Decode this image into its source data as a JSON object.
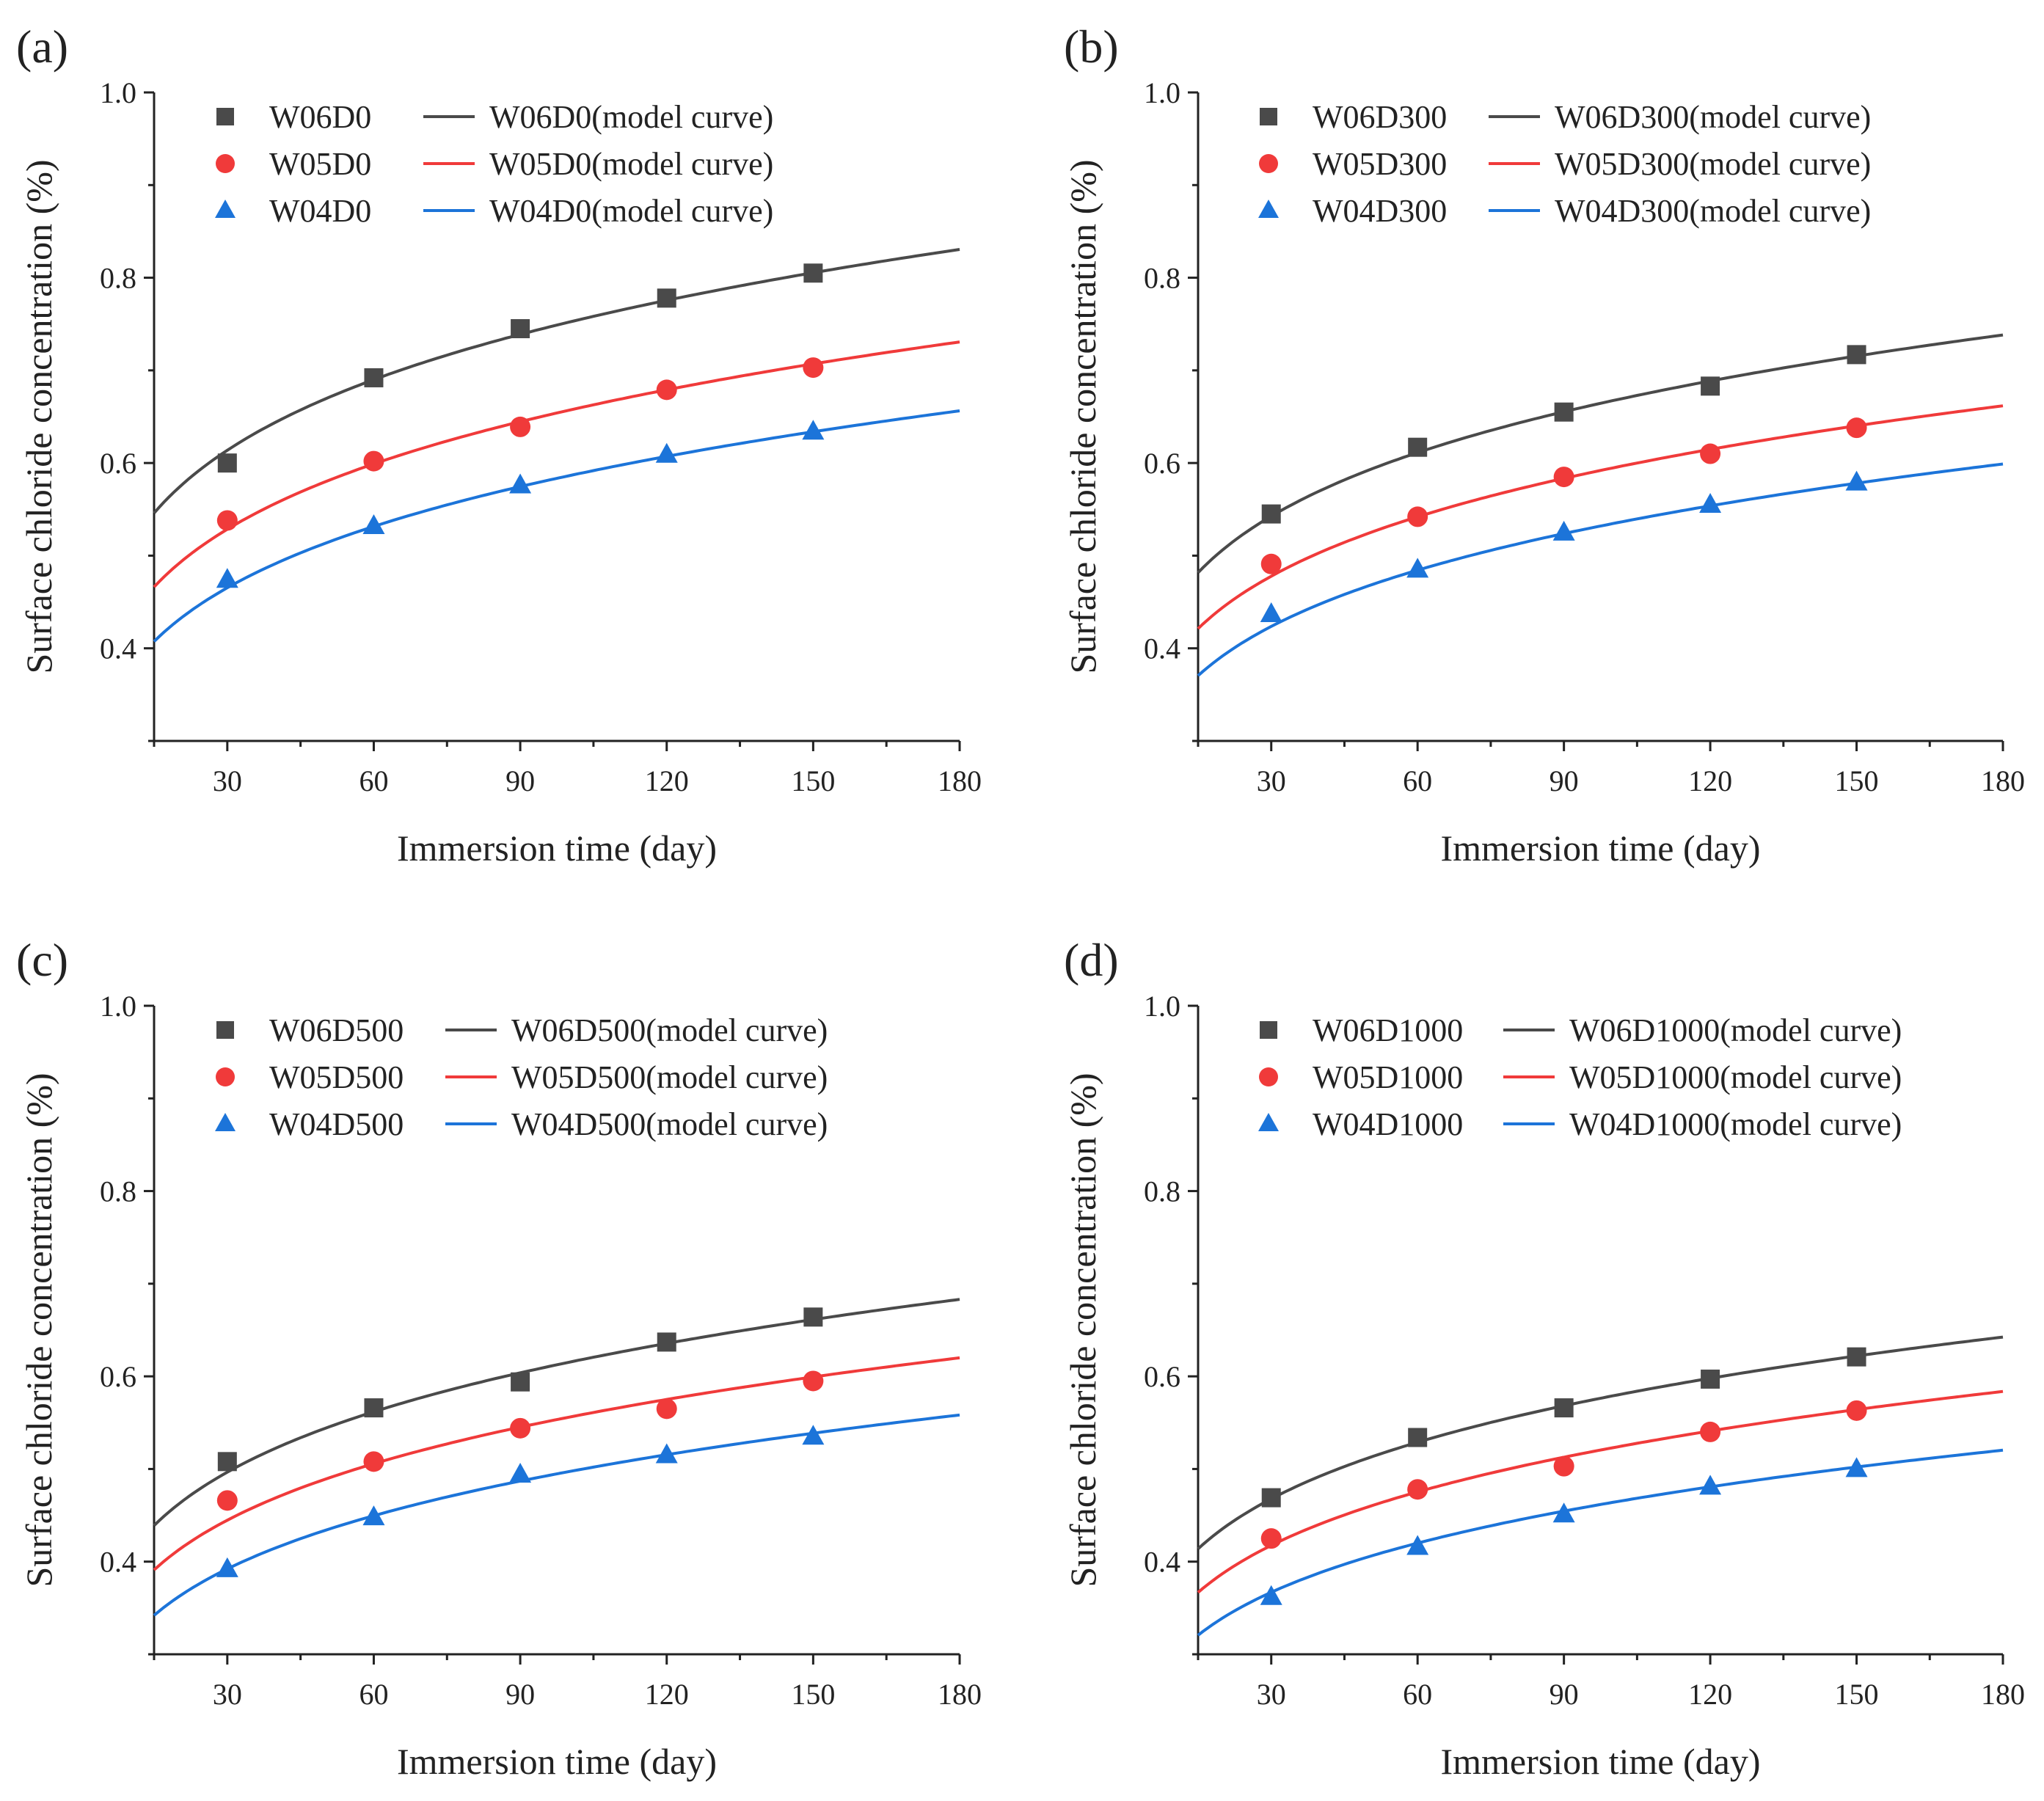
{
  "figure": {
    "colors": {
      "black": "#4a4a4a",
      "red": "#f03a3a",
      "blue": "#1c74d9"
    }
  },
  "chart_data": [
    {
      "type": "scatter",
      "panel_label": "(a)",
      "xlabel": "Immersion time (day)",
      "ylabel": "Surface chloride concentration (%)",
      "xlim": [
        15,
        180
      ],
      "ylim": [
        0.3,
        1.0
      ],
      "xticks": [
        "30",
        "60",
        "90",
        "120",
        "150",
        "180"
      ],
      "yticks": [
        "0.4",
        "0.6",
        "0.8",
        "1.0"
      ],
      "x": [
        30,
        60,
        90,
        120,
        150
      ],
      "series": [
        {
          "name": "W06D0",
          "curve_name": "W06D0(model curve)",
          "color": "#4a4a4a",
          "marker": "square",
          "values": [
            0.6,
            0.692,
            0.745,
            0.778,
            0.805
          ],
          "model_curve": {
            "x": [
              15,
              30,
              60,
              90,
              120,
              150,
              180
            ],
            "y": [
              0.545,
              0.615,
              0.69,
              0.74,
              0.775,
              0.805,
              0.83
            ]
          }
        },
        {
          "name": "W05D0",
          "curve_name": "W05D0(model curve)",
          "color": "#f03a3a",
          "marker": "circle",
          "values": [
            0.538,
            0.602,
            0.639,
            0.679,
            0.703
          ],
          "model_curve": {
            "x": [
              15,
              30,
              60,
              90,
              120,
              150,
              180
            ],
            "y": [
              0.465,
              0.53,
              0.6,
              0.645,
              0.678,
              0.707,
              0.73
            ]
          }
        },
        {
          "name": "W04D0",
          "curve_name": "W04D0(model curve)",
          "color": "#1c74d9",
          "marker": "triangle",
          "values": [
            0.474,
            0.532,
            0.576,
            0.609,
            0.634
          ],
          "model_curve": {
            "x": [
              15,
              30,
              60,
              90,
              120,
              150,
              180
            ],
            "y": [
              0.408,
              0.465,
              0.53,
              0.575,
              0.607,
              0.634,
              0.657
            ]
          }
        }
      ]
    },
    {
      "type": "scatter",
      "panel_label": "(b)",
      "xlabel": "Immersion time (day)",
      "ylabel": "Surface chloride concentration (%)",
      "xlim": [
        15,
        180
      ],
      "ylim": [
        0.3,
        1.0
      ],
      "xticks": [
        "30",
        "60",
        "90",
        "120",
        "150",
        "180"
      ],
      "yticks": [
        "0.4",
        "0.6",
        "0.8",
        "1.0"
      ],
      "x": [
        30,
        60,
        90,
        120,
        150
      ],
      "series": [
        {
          "name": "W06D300",
          "curve_name": "W06D300(model curve)",
          "color": "#4a4a4a",
          "marker": "square",
          "values": [
            0.545,
            0.617,
            0.655,
            0.683,
            0.717
          ],
          "model_curve": {
            "x": [
              15,
              30,
              60,
              90,
              120,
              150,
              180
            ],
            "y": [
              0.48,
              0.545,
              0.612,
              0.655,
              0.688,
              0.715,
              0.738
            ]
          }
        },
        {
          "name": "W05D300",
          "curve_name": "W05D300(model curve)",
          "color": "#f03a3a",
          "marker": "circle",
          "values": [
            0.491,
            0.542,
            0.585,
            0.61,
            0.638
          ],
          "model_curve": {
            "x": [
              15,
              30,
              60,
              90,
              120,
              150,
              180
            ],
            "y": [
              0.42,
              0.48,
              0.542,
              0.583,
              0.614,
              0.64,
              0.662
            ]
          }
        },
        {
          "name": "W04D300",
          "curve_name": "W04D300(model curve)",
          "color": "#1c74d9",
          "marker": "triangle",
          "values": [
            0.437,
            0.485,
            0.525,
            0.555,
            0.579
          ],
          "model_curve": {
            "x": [
              15,
              30,
              60,
              90,
              120,
              150,
              180
            ],
            "y": [
              0.368,
              0.428,
              0.485,
              0.522,
              0.552,
              0.578,
              0.6
            ]
          }
        }
      ]
    },
    {
      "type": "scatter",
      "panel_label": "(c)",
      "xlabel": "Immersion time (day)",
      "ylabel": "Surface chloride concentration (%)",
      "xlim": [
        15,
        180
      ],
      "ylim": [
        0.3,
        1.0
      ],
      "xticks": [
        "30",
        "60",
        "90",
        "120",
        "150",
        "180"
      ],
      "yticks": [
        "0.4",
        "0.6",
        "0.8",
        "1.0"
      ],
      "x": [
        30,
        60,
        90,
        120,
        150
      ],
      "series": [
        {
          "name": "W06D500",
          "curve_name": "W06D500(model curve)",
          "color": "#4a4a4a",
          "marker": "square",
          "values": [
            0.508,
            0.566,
            0.594,
            0.637,
            0.664
          ],
          "model_curve": {
            "x": [
              15,
              30,
              60,
              90,
              120,
              150,
              180
            ],
            "y": [
              0.438,
              0.498,
              0.562,
              0.604,
              0.635,
              0.661,
              0.683
            ]
          }
        },
        {
          "name": "W05D500",
          "curve_name": "W05D500(model curve)",
          "color": "#f03a3a",
          "marker": "circle",
          "values": [
            0.466,
            0.508,
            0.544,
            0.565,
            0.595
          ],
          "model_curve": {
            "x": [
              15,
              30,
              60,
              90,
              120,
              150,
              180
            ],
            "y": [
              0.39,
              0.446,
              0.506,
              0.546,
              0.575,
              0.599,
              0.619
            ]
          }
        },
        {
          "name": "W04D500",
          "curve_name": "W04D500(model curve)",
          "color": "#1c74d9",
          "marker": "triangle",
          "values": [
            0.392,
            0.448,
            0.494,
            0.515,
            0.535
          ],
          "model_curve": {
            "x": [
              15,
              30,
              60,
              90,
              120,
              150,
              180
            ],
            "y": [
              0.34,
              0.395,
              0.45,
              0.488,
              0.515,
              0.538,
              0.557
            ]
          }
        }
      ]
    },
    {
      "type": "scatter",
      "panel_label": "(d)",
      "xlabel": "Immersion time (day)",
      "ylabel": "Surface chloride concentration (%)",
      "xlim": [
        15,
        180
      ],
      "ylim": [
        0.3,
        1.0
      ],
      "xticks": [
        "30",
        "60",
        "90",
        "120",
        "150",
        "180"
      ],
      "yticks": [
        "0.4",
        "0.6",
        "0.8",
        "1.0"
      ],
      "x": [
        30,
        60,
        90,
        120,
        150
      ],
      "series": [
        {
          "name": "W06D1000",
          "curve_name": "W06D1000(model curve)",
          "color": "#4a4a4a",
          "marker": "square",
          "values": [
            0.469,
            0.534,
            0.566,
            0.597,
            0.621
          ],
          "model_curve": {
            "x": [
              15,
              30,
              60,
              90,
              120,
              150,
              180
            ],
            "y": [
              0.412,
              0.47,
              0.53,
              0.569,
              0.597,
              0.621,
              0.642
            ]
          }
        },
        {
          "name": "W05D1000",
          "curve_name": "W05D1000(model curve)",
          "color": "#f03a3a",
          "marker": "circle",
          "values": [
            0.425,
            0.478,
            0.503,
            0.54,
            0.563
          ],
          "model_curve": {
            "x": [
              15,
              30,
              60,
              90,
              120,
              150,
              180
            ],
            "y": [
              0.365,
              0.419,
              0.477,
              0.514,
              0.541,
              0.563,
              0.582
            ]
          }
        },
        {
          "name": "W04D1000",
          "curve_name": "W04D1000(model curve)",
          "color": "#1c74d9",
          "marker": "triangle",
          "values": [
            0.362,
            0.416,
            0.451,
            0.481,
            0.5
          ],
          "model_curve": {
            "x": [
              15,
              30,
              60,
              90,
              120,
              150,
              180
            ],
            "y": [
              0.318,
              0.37,
              0.421,
              0.456,
              0.481,
              0.501,
              0.518
            ]
          }
        }
      ]
    }
  ]
}
